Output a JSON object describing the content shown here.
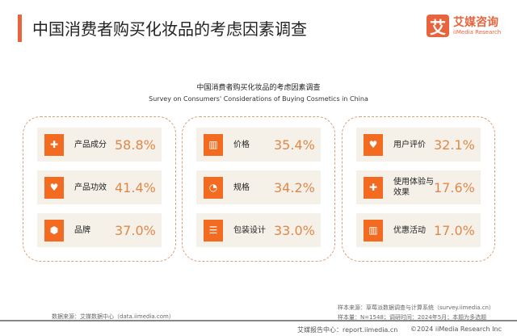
{
  "header": {
    "title": "中国消费者购买化妆品的考虑因素调查",
    "logo_mark": "艾",
    "logo_cn": "艾媒咨询",
    "logo_en": "iiMedia Research"
  },
  "chart": {
    "title_cn": "中国消费者购买化妆品的考虑因素调查",
    "title_en": "Survey on Consumers' Considerations of Buying Cosmetics in China"
  },
  "groups": [
    {
      "items": [
        {
          "icon": "puzzle-icon",
          "glyph": "✚",
          "label": "产品成分",
          "value": "58.8%"
        },
        {
          "icon": "heart-icon",
          "glyph": "♥",
          "label": "产品功效",
          "value": "41.4%"
        },
        {
          "icon": "box-icon",
          "glyph": "⬢",
          "label": "品牌",
          "value": "37.0%"
        }
      ]
    },
    {
      "items": [
        {
          "icon": "gift-icon",
          "glyph": "▥",
          "label": "价格",
          "value": "35.4%"
        },
        {
          "icon": "pie-icon",
          "glyph": "◔",
          "label": "规格",
          "value": "34.2%"
        },
        {
          "icon": "list-icon",
          "glyph": "☰",
          "label": "包装设计",
          "value": "33.0%"
        }
      ]
    },
    {
      "items": [
        {
          "icon": "heart-icon",
          "glyph": "♥",
          "label": "用户评价",
          "value": "32.1%"
        },
        {
          "icon": "puzzle-icon",
          "glyph": "✚",
          "label": "使用体验与效果",
          "value": "17.6%"
        },
        {
          "icon": "gift-icon",
          "glyph": "▥",
          "label": "优惠活动",
          "value": "17.0%"
        }
      ]
    }
  ],
  "footer": {
    "data_source": "数据来源：艾媒数据中心（data.iimedia.com）",
    "sample_source": "样本来源：草莓派数据调查与计算系统（survey.iimedia.cn）",
    "sample_info": "样本量：N=1548；调研时间：2024年5月；本题为多选题",
    "report": "艾媒报告中心：report.iimedia.cn",
    "copyright": "©2024  iiMedia Research  Inc"
  },
  "colors": {
    "accent": "#f26b21",
    "value": "#e0884a"
  }
}
